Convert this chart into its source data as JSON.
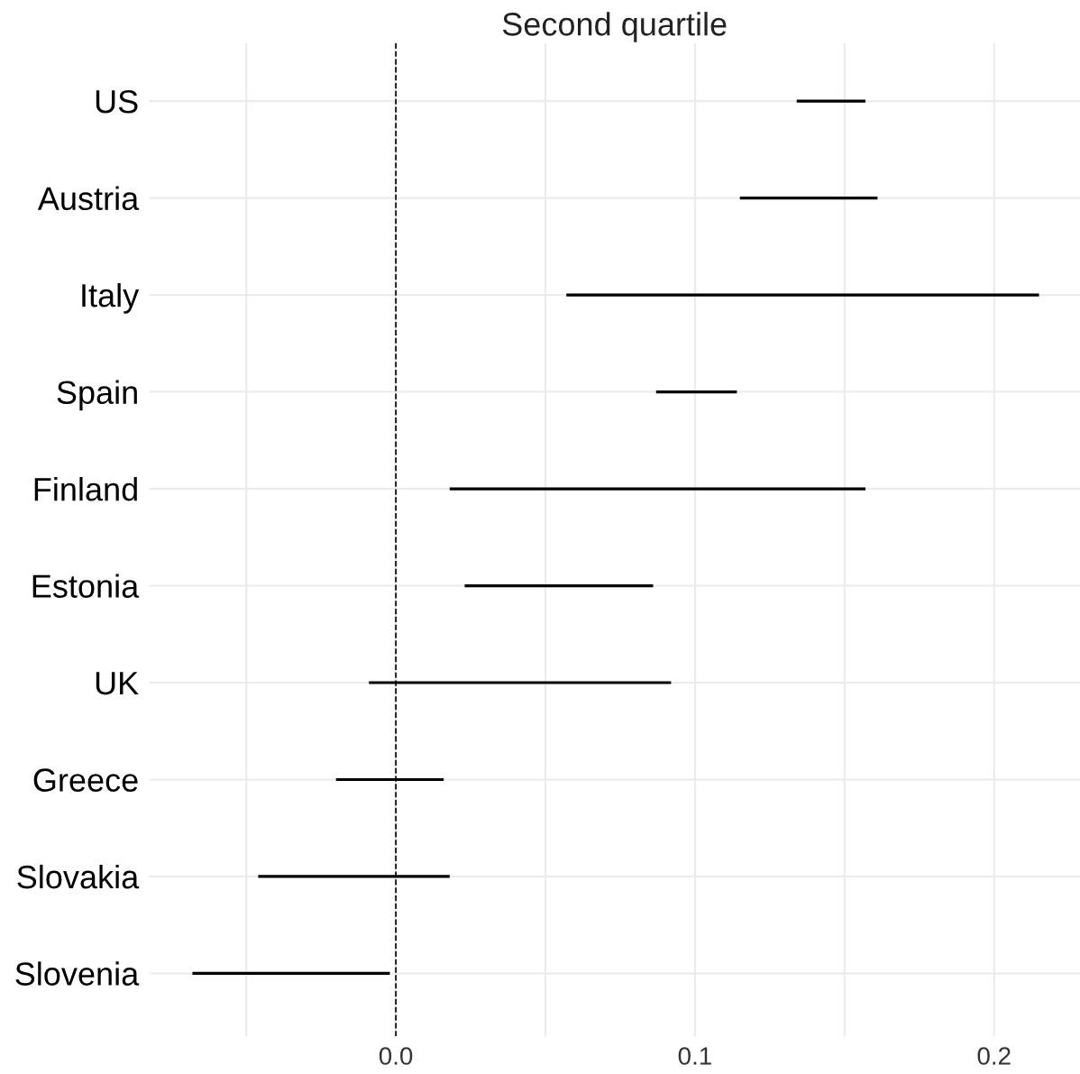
{
  "chart_data": {
    "type": "bar",
    "orientation": "horizontal",
    "title": "Second quartile",
    "categories": [
      "US",
      "Austria",
      "Italy",
      "Spain",
      "Finland",
      "Estonia",
      "UK",
      "Greece",
      "Slovakia",
      "Slovenia"
    ],
    "base": [
      0.134,
      0.115,
      0.057,
      0.087,
      0.018,
      0.023,
      -0.009,
      -0.02,
      -0.046,
      -0.068
    ],
    "values": [
      0.023,
      0.046,
      0.158,
      0.027,
      0.139,
      0.063,
      0.101,
      0.036,
      0.064,
      0.066
    ],
    "color": "#000000",
    "xlim": [
      -0.0825,
      0.2287
    ],
    "xticks": [
      {
        "value": -0.05,
        "label": null
      },
      {
        "value": 0,
        "label": "0.0"
      },
      {
        "value": 0.05,
        "label": null
      },
      0.1,
      {
        "value": 0.15,
        "label": null
      },
      0.2
    ],
    "grid": true,
    "ref_lines": [
      {
        "axis": "x",
        "value": 0,
        "line_style": "dashed",
        "color": "#000000"
      }
    ]
  }
}
